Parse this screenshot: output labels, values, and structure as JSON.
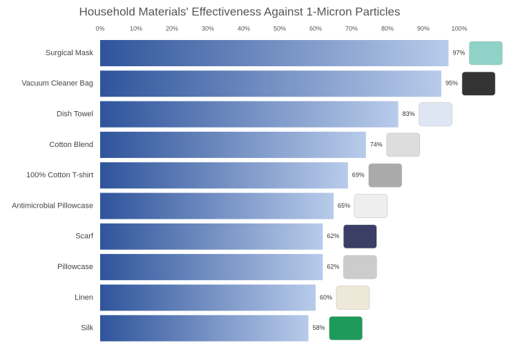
{
  "chart_data": {
    "type": "hbar",
    "title": "Household Materials' Effectiveness Against 1-Micron Particles",
    "categories": [
      "Surgical Mask",
      "Vacuum Cleaner Bag",
      "Dish Towel",
      "Cotton Blend",
      "100% Cotton T-shirt",
      "Antimicrobial Pillowcase",
      "Scarf",
      "Pillowcase",
      "Linen",
      "Silk"
    ],
    "values": [
      97,
      95,
      83,
      74,
      69,
      65,
      62,
      62,
      60,
      58
    ],
    "value_labels": [
      "97%",
      "95%",
      "83%",
      "74%",
      "69%",
      "65%",
      "62%",
      "62%",
      "60%",
      "58%"
    ],
    "xlim": [
      0,
      100
    ],
    "xticks": [
      {
        "value": 0,
        "label": "0%"
      },
      {
        "value": 10,
        "label": "10%"
      },
      {
        "value": 20,
        "label": "20%"
      },
      {
        "value": 30,
        "label": "30%"
      },
      {
        "value": 40,
        "label": "40%"
      },
      {
        "value": 50,
        "label": "50%"
      },
      {
        "value": 60,
        "label": "60%"
      },
      {
        "value": 70,
        "label": "70%"
      },
      {
        "value": 80,
        "label": "80%"
      },
      {
        "value": 90,
        "label": "90%"
      },
      {
        "value": 100,
        "label": "100%"
      }
    ],
    "color": [
      "#2f549b",
      "#b8cbea"
    ]
  }
}
